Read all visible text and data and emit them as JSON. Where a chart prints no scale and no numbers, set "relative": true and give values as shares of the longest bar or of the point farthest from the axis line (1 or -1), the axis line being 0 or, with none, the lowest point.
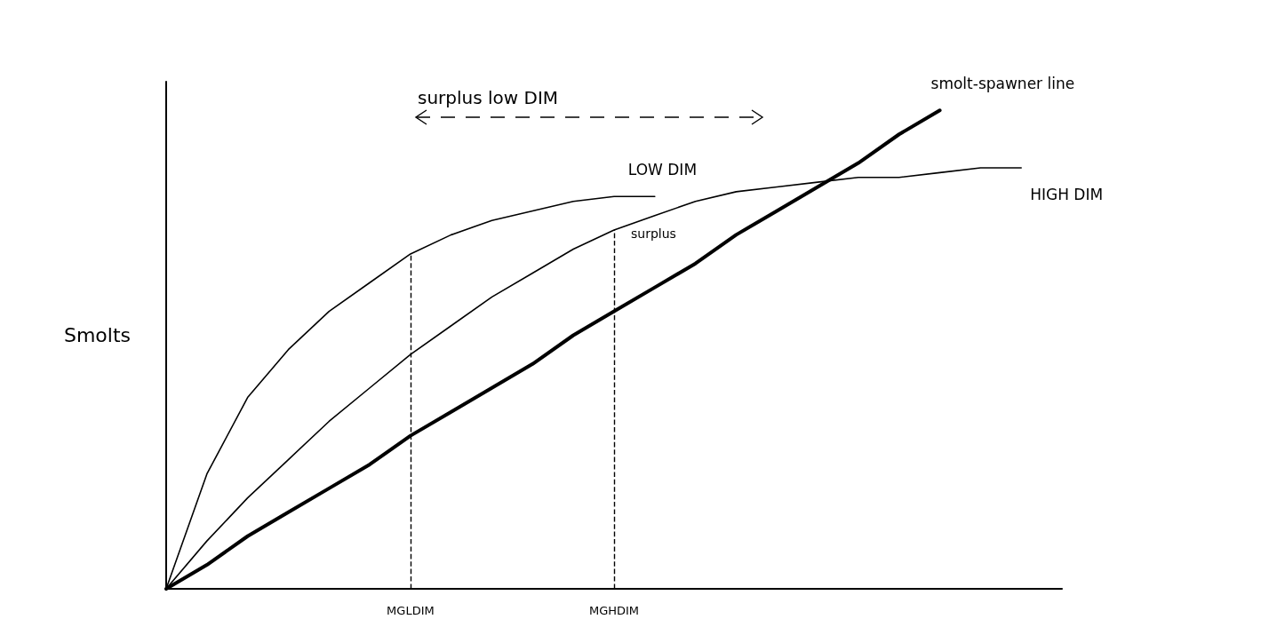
{
  "chart_data": {
    "type": "line",
    "relative": true,
    "ylabel": "Smolts",
    "categories": [
      null,
      null,
      null,
      null,
      null,
      null,
      "MGLDIM",
      null,
      null,
      null,
      null,
      "MGHDIM",
      null,
      null,
      null,
      null,
      null,
      null,
      null,
      null,
      null,
      null,
      null
    ],
    "series": [
      {
        "name": "LOW DIM",
        "color": "#000000",
        "values": [
          0,
          0.24,
          0.4,
          0.5,
          0.58,
          0.64,
          0.7,
          0.74,
          0.77,
          0.79,
          0.81,
          0.82,
          0.82,
          null,
          null,
          null,
          null,
          null,
          null,
          null,
          null,
          null,
          null
        ]
      },
      {
        "name": "HIGH DIM",
        "color": "#000000",
        "values": [
          0,
          0.1,
          0.19,
          0.27,
          0.35,
          0.42,
          0.49,
          0.55,
          0.61,
          0.66,
          0.71,
          0.75,
          0.78,
          0.81,
          0.83,
          0.84,
          0.85,
          0.86,
          0.86,
          0.87,
          0.88,
          0.88,
          null
        ]
      },
      {
        "name": "smolt-spawner line",
        "color": "#000000",
        "values": [
          0,
          0.05,
          0.11,
          0.16,
          0.21,
          0.26,
          0.32,
          0.37,
          0.42,
          0.47,
          0.53,
          0.58,
          0.63,
          0.68,
          0.74,
          0.79,
          0.84,
          0.89,
          0.95,
          1,
          null,
          null,
          null
        ]
      }
    ],
    "ref_lines": [
      {
        "axis": "x",
        "value": "MGLDIM",
        "line_style": "dashed"
      },
      {
        "axis": "x",
        "value": "MGHDIM",
        "line_style": "dashed"
      }
    ],
    "annotations": [
      "surplus low DIM",
      "surplus"
    ],
    "marker": "none",
    "line_style": "solid",
    "grid": false,
    "legend": false
  }
}
